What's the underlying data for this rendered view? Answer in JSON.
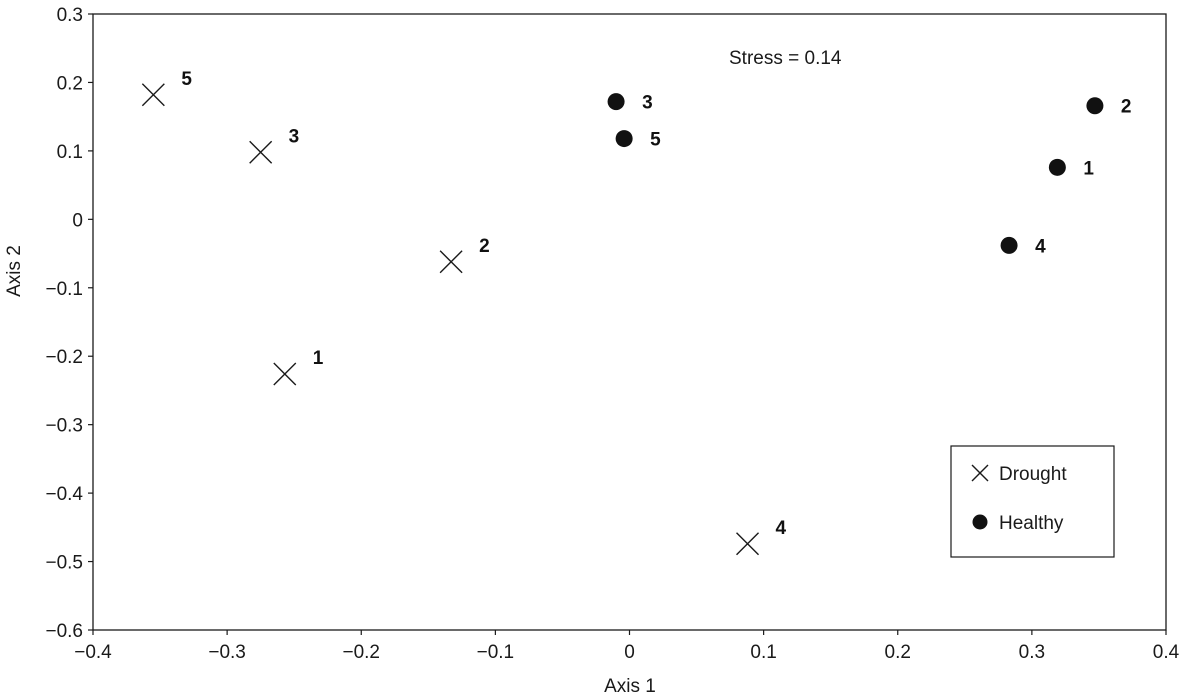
{
  "chart_data": {
    "type": "scatter",
    "xlabel": "Axis 1",
    "ylabel": "Axis 2",
    "xlim": [
      -0.4,
      0.4
    ],
    "ylim": [
      -0.6,
      0.3
    ],
    "xticks": [
      "−0.4",
      "−0.3",
      "−0.2",
      "−0.1",
      "0",
      "0.1",
      "0.2",
      "0.3",
      "0.4"
    ],
    "yticks": [
      "0.3",
      "0.2",
      "0.1",
      "0",
      "−0.1",
      "−0.2",
      "−0.3",
      "−0.4",
      "−0.5",
      "−0.6"
    ],
    "grid": false,
    "annotation": "Stress = 0.14",
    "legend_position": "bottom-right",
    "series": [
      {
        "name": "Drought",
        "marker": "x",
        "color": "#1a1a1a",
        "points": [
          {
            "x": -0.257,
            "y": -0.226,
            "label": "1"
          },
          {
            "x": -0.133,
            "y": -0.062,
            "label": "2"
          },
          {
            "x": -0.275,
            "y": 0.098,
            "label": "3"
          },
          {
            "x": 0.088,
            "y": -0.474,
            "label": "4"
          },
          {
            "x": -0.355,
            "y": 0.182,
            "label": "5"
          }
        ]
      },
      {
        "name": "Healthy",
        "marker": "circle",
        "color": "#111111",
        "points": [
          {
            "x": 0.319,
            "y": 0.076,
            "label": "1"
          },
          {
            "x": 0.347,
            "y": 0.166,
            "label": "2"
          },
          {
            "x": -0.01,
            "y": 0.172,
            "label": "3"
          },
          {
            "x": 0.283,
            "y": -0.038,
            "label": "4"
          },
          {
            "x": -0.004,
            "y": 0.118,
            "label": "5"
          }
        ]
      }
    ]
  }
}
